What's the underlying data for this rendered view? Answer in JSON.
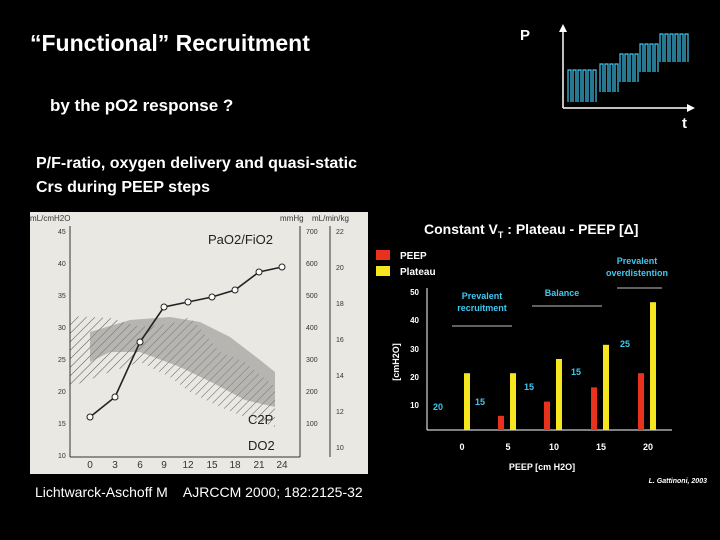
{
  "slide": {
    "title": "“Functional” Recruitment",
    "subtitle": "by the pO2 response ?",
    "description": "P/F-ratio, oxygen delivery and quasi-static Crs during PEEP steps",
    "citation_author": "Lichtwarck-Aschoff M",
    "citation_ref": "AJRCCM 2000; 182:2125-32"
  },
  "pt_diagram": {
    "y_axis_label": "P",
    "x_axis_label": "t",
    "waveform_color": "#3ec8f0"
  },
  "left_chart": {
    "units": {
      "left": "mL/cmH2O",
      "middle": "mmHg",
      "right": "mL/min/kg"
    },
    "left_ticks": [
      "45",
      "40",
      "35",
      "30",
      "25",
      "20",
      "15",
      "10"
    ],
    "middle_ticks": [
      "700",
      "600",
      "500",
      "400",
      "300",
      "200",
      "100"
    ],
    "right_ticks": [
      "22",
      "20",
      "18",
      "16",
      "14",
      "12",
      "10"
    ],
    "x_ticks": [
      "0",
      "3",
      "6",
      "9",
      "12",
      "15",
      "18",
      "21",
      "24"
    ],
    "labels": {
      "pf": "PaO2/FiO2",
      "c2p": "C2P",
      "do2": "DO2"
    }
  },
  "right_chart": {
    "title": "Constant V",
    "title_sub": "T",
    "title_rest": " : Plateau - PEEP [Δ]",
    "legend": [
      {
        "label": "PEEP",
        "color": "#e8321e"
      },
      {
        "label": "Plateau",
        "color": "#f5e61e"
      }
    ],
    "y_axis_label": "[cmH2O]",
    "y_ticks": [
      "50",
      "40",
      "30",
      "20",
      "10"
    ],
    "x_axis_label": "PEEP [cm H2O]",
    "x_ticks": [
      "0",
      "5",
      "10",
      "15",
      "20"
    ],
    "annotations": {
      "prevalent_recruitment_1": "Prevalent",
      "prevalent_recruitment_2": "recruitment",
      "balance": "Balance",
      "prevalent_overdistention_1": "Prevalent",
      "prevalent_overdistention_2": "overdistention"
    },
    "deltas": [
      "20",
      "15",
      "15",
      "15",
      "25"
    ],
    "credit": "L. Gattinoni, 2003"
  },
  "chart_data": {
    "type": "bar",
    "categories": [
      "0",
      "5",
      "10",
      "15",
      "20"
    ],
    "series": [
      {
        "name": "PEEP",
        "values": [
          0,
          5,
          10,
          15,
          20
        ],
        "color": "#e8321e"
      },
      {
        "name": "Plateau",
        "values": [
          20,
          20,
          25,
          30,
          45
        ],
        "color": "#f5e61e"
      }
    ],
    "title": "Constant VT : Plateau - PEEP [Δ]",
    "xlabel": "PEEP [cm H2O]",
    "ylabel": "[cmH2O]",
    "ylim": [
      0,
      50
    ]
  }
}
